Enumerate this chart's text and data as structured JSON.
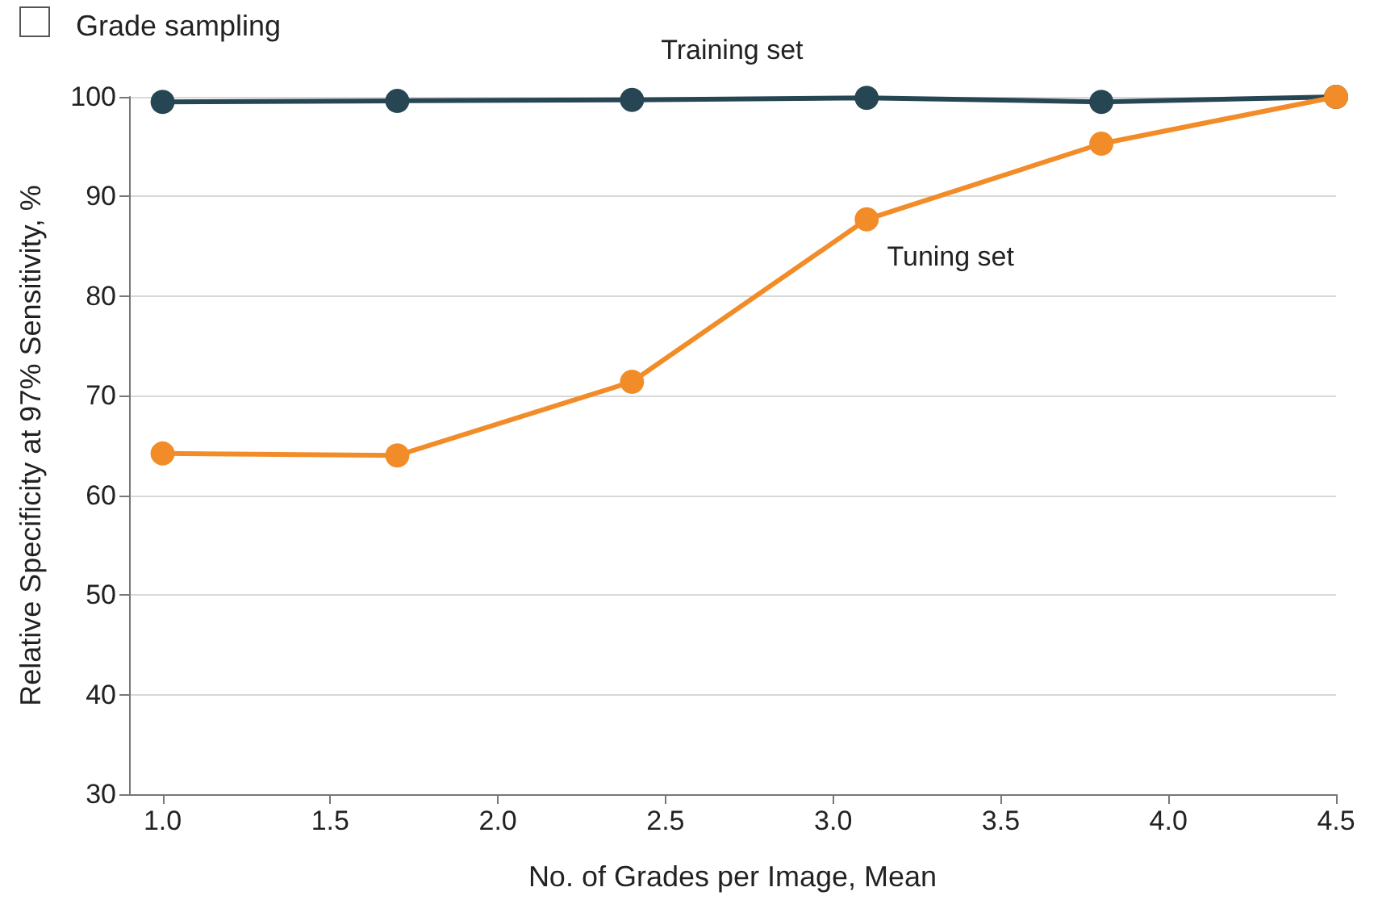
{
  "chart_data": {
    "type": "line",
    "title": "Grade sampling",
    "xlabel": "No. of Grades per Image, Mean",
    "ylabel": "Relative Specificity at 97% Sensitivity, %",
    "x": [
      1.0,
      1.7,
      2.4,
      3.1,
      3.8,
      4.5
    ],
    "series": [
      {
        "name": "Training set",
        "color": "#264653",
        "values": [
          99.5,
          99.6,
          99.7,
          99.9,
          99.5,
          100
        ]
      },
      {
        "name": "Tuning set",
        "color": "#f28c28",
        "values": [
          64.2,
          64.0,
          71.4,
          87.7,
          95.3,
          100
        ]
      }
    ],
    "xlim": [
      0.9,
      4.5
    ],
    "xticks": [
      {
        "value": 1.0,
        "label": "1.0"
      },
      {
        "value": 1.5,
        "label": "1.5"
      },
      {
        "value": 2.0,
        "label": "2.0"
      },
      {
        "value": 2.5,
        "label": "2.5"
      },
      {
        "value": 3.0,
        "label": "3.0"
      },
      {
        "value": 3.5,
        "label": "3.5"
      },
      {
        "value": 4.0,
        "label": "4.0"
      },
      {
        "value": 4.5,
        "label": "4.5"
      }
    ],
    "ylim": [
      30,
      100
    ],
    "yticks": [
      30,
      40,
      50,
      60,
      70,
      80,
      90,
      100
    ],
    "grid": "y",
    "marker": "circle",
    "line_style": "solid",
    "legend": false
  }
}
